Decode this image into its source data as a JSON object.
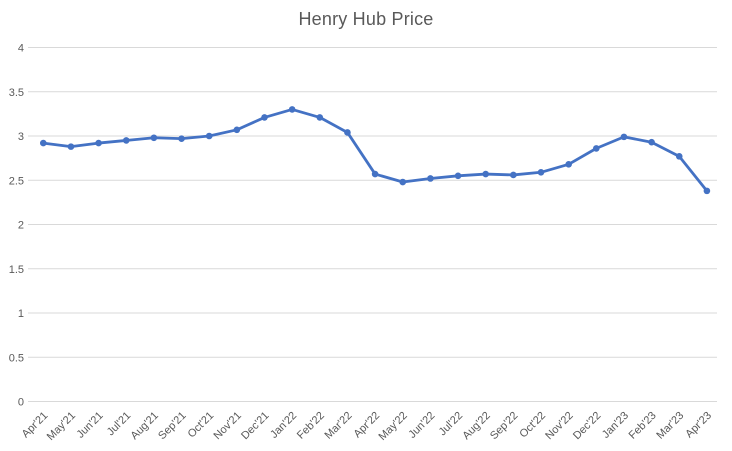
{
  "chart_data": {
    "type": "line",
    "title": "Henry Hub Price",
    "categories": [
      "Apr'21",
      "May'21",
      "Jun'21",
      "Jul'21",
      "Aug'21",
      "Sep'21",
      "Oct'21",
      "Nov'21",
      "Dec'21",
      "Jan'22",
      "Feb'22",
      "Mar'22",
      "Apr'22",
      "May'22",
      "Jun'22",
      "Jul'22",
      "Aug'22",
      "Sep'22",
      "Oct'22",
      "Nov'22",
      "Dec'22",
      "Jan'23",
      "Feb'23",
      "Mar'23",
      "Apr'23"
    ],
    "values": [
      2.92,
      2.88,
      2.92,
      2.95,
      2.98,
      2.97,
      3.0,
      3.07,
      3.21,
      3.3,
      3.21,
      3.04,
      2.57,
      2.48,
      2.52,
      2.55,
      2.57,
      2.56,
      2.59,
      2.68,
      2.86,
      2.99,
      2.93,
      2.77,
      2.38
    ],
    "xlabel": "",
    "ylabel": "",
    "ylim": [
      0,
      4
    ],
    "ytick_step": 0.5,
    "ytick_labels": [
      "0",
      "0.5",
      "1",
      "1.5",
      "2",
      "2.5",
      "3",
      "3.5",
      "4"
    ],
    "grid": true,
    "legend": false,
    "colors": {
      "line": "#4472C4",
      "marker": "#4472C4",
      "grid": "#D9D9D9",
      "axis_text": "#595959",
      "title_text": "#595959",
      "background": "#FFFFFF"
    }
  }
}
